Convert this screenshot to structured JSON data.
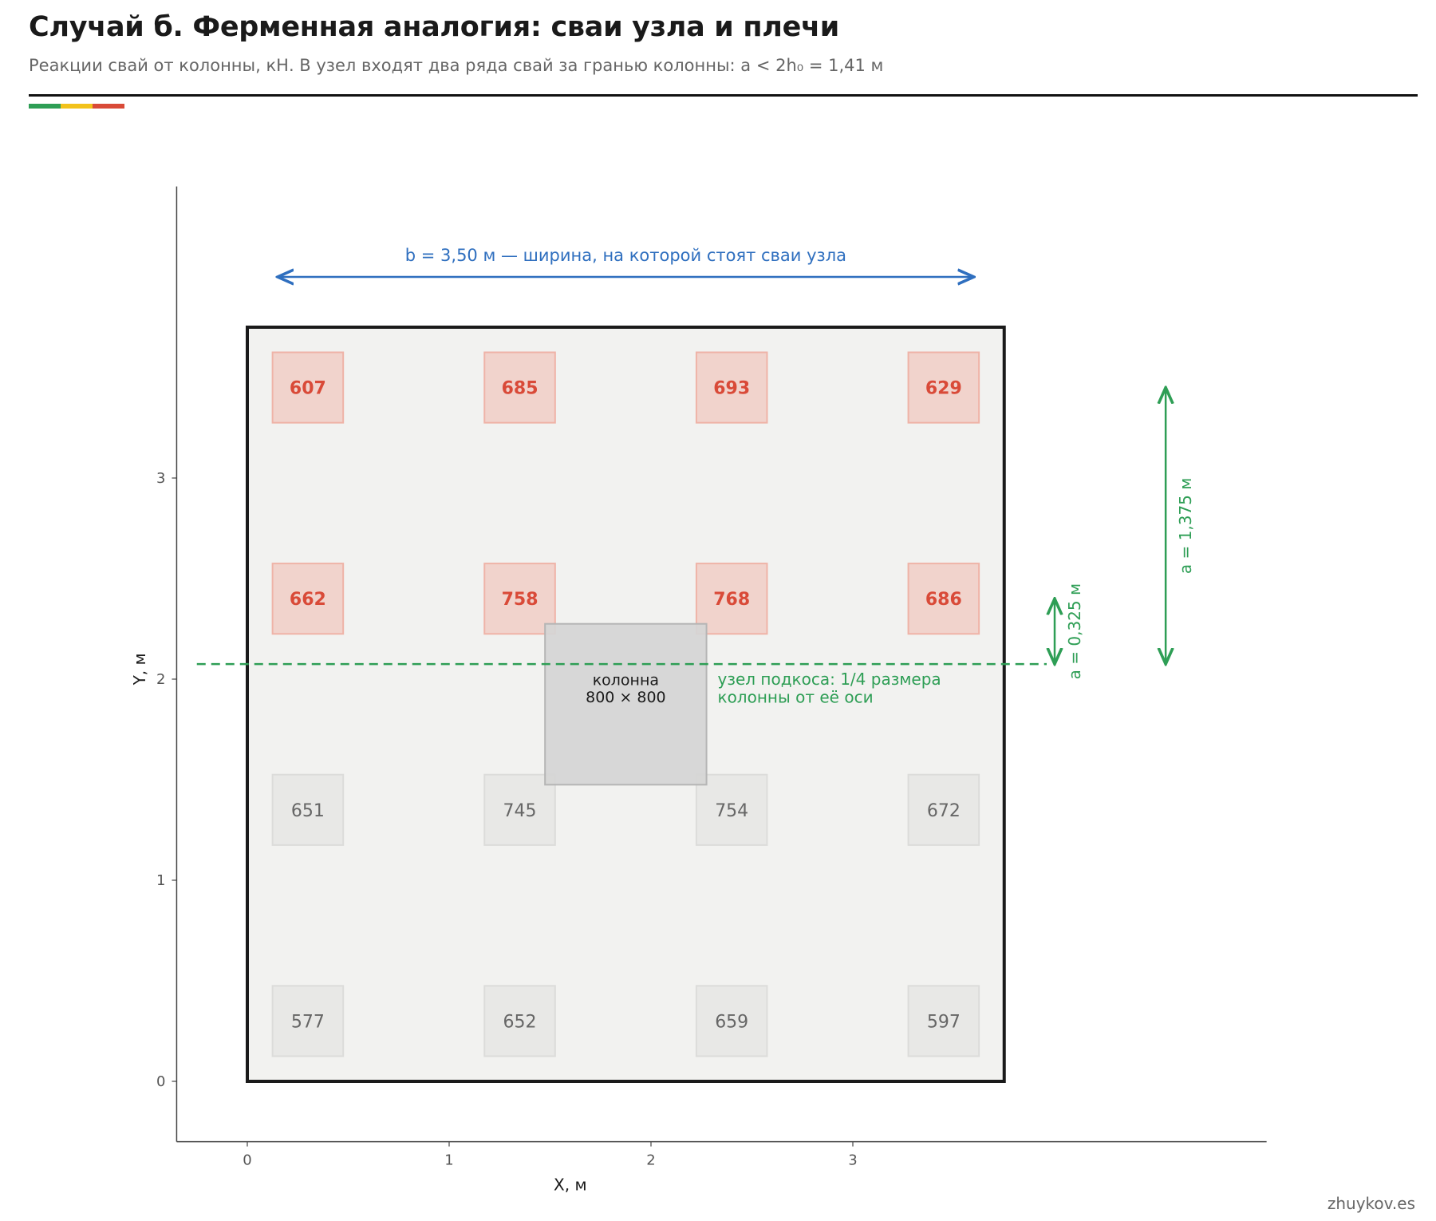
{
  "header": {
    "title": "Случай б. Ферменная аналогия: сваи узла и плечи",
    "subtitle": "Реакции свай от колонны, кН. В узел входят два ряда свай за гранью колонны: a < 2h₀ = 1,41 м"
  },
  "accent_colors": [
    "#2e9e55",
    "#f2c21b",
    "#d94a38"
  ],
  "credit": "zhuykov.es",
  "chart_data": {
    "type": "scatter",
    "title": "Случай б. Ферменная аналогия: сваи узла и плечи",
    "subtitle": "Реакции свай от колонны, кН. В узел входят два ряда свай за гранью колонны: a < 2h₀ = 1,41 м",
    "xlabel": "X, м",
    "ylabel": "Y, м",
    "xlim": [
      -0.35,
      5.05
    ],
    "ylim": [
      -0.3,
      4.45
    ],
    "xticks": [
      0,
      1,
      2,
      3
    ],
    "yticks": [
      0,
      1,
      2,
      3
    ],
    "grid": false,
    "slab": {
      "x": [
        0,
        3.75
      ],
      "y": [
        0,
        3.75
      ]
    },
    "column": {
      "x": [
        1.475,
        2.275
      ],
      "y": [
        1.475,
        2.275
      ],
      "label": [
        "колонна",
        "800 × 800"
      ]
    },
    "pile_size": 0.35,
    "piles": [
      {
        "x": 0.3,
        "y": 3.45,
        "value": 607,
        "node": true
      },
      {
        "x": 1.35,
        "y": 3.45,
        "value": 685,
        "node": true
      },
      {
        "x": 2.4,
        "y": 3.45,
        "value": 693,
        "node": true
      },
      {
        "x": 3.45,
        "y": 3.45,
        "value": 629,
        "node": true
      },
      {
        "x": 0.3,
        "y": 2.4,
        "value": 662,
        "node": true
      },
      {
        "x": 1.35,
        "y": 2.4,
        "value": 758,
        "node": true
      },
      {
        "x": 2.4,
        "y": 2.4,
        "value": 768,
        "node": true
      },
      {
        "x": 3.45,
        "y": 2.4,
        "value": 686,
        "node": true
      },
      {
        "x": 0.3,
        "y": 1.35,
        "value": 651,
        "node": false
      },
      {
        "x": 1.35,
        "y": 1.35,
        "value": 745,
        "node": false
      },
      {
        "x": 2.4,
        "y": 1.35,
        "value": 754,
        "node": false
      },
      {
        "x": 3.45,
        "y": 1.35,
        "value": 672,
        "node": false
      },
      {
        "x": 0.3,
        "y": 0.3,
        "value": 577,
        "node": false
      },
      {
        "x": 1.35,
        "y": 0.3,
        "value": 652,
        "node": false
      },
      {
        "x": 2.4,
        "y": 0.3,
        "value": 659,
        "node": false
      },
      {
        "x": 3.45,
        "y": 0.3,
        "value": 597,
        "node": false
      }
    ],
    "node_line": {
      "y": 2.075,
      "x": [
        -0.25,
        4.0
      ],
      "label": [
        "узел подкоса: 1/4 размера",
        "колонны от её оси"
      ]
    },
    "width_arrow": {
      "y": 4.0,
      "x": [
        0.15,
        3.6
      ],
      "label": "b = 3,50 м — ширина, на которой стоят сваи узла"
    },
    "arm_small": {
      "x": 4.0,
      "y": [
        2.075,
        2.4
      ],
      "label": "a = 0,325 м"
    },
    "arm_large": {
      "x": 4.55,
      "y": [
        2.075,
        3.45
      ],
      "label": "a = 1,375 м"
    },
    "colors": {
      "node_pile_fill": "#f1d3cc",
      "node_pile_stroke": "#efb3a7",
      "node_pile_text": "#d94a38",
      "pile_fill": "#e8e8e6",
      "pile_stroke": "#dcdcda",
      "pile_text": "#666666",
      "slab_fill": "#f2f2f0",
      "slab_stroke": "#1a1a1a",
      "column_fill": "#d5d5d5",
      "column_stroke": "#b5b5b5",
      "node_line": "#2e9e55",
      "width_arrow": "#2f6fbf",
      "arm": "#2e9e55",
      "axis": "#444444"
    }
  }
}
